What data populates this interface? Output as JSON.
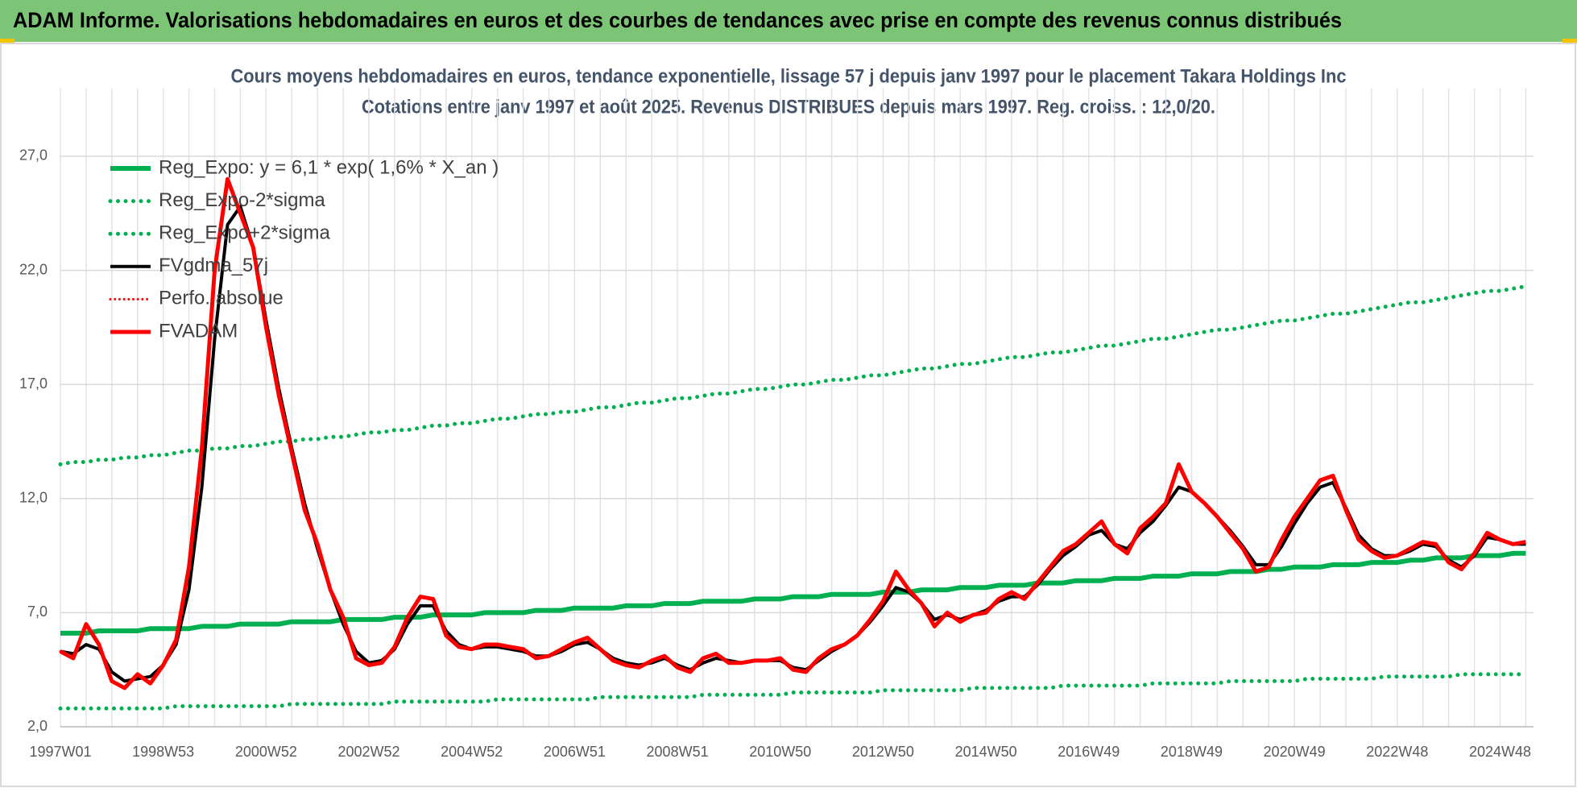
{
  "header": {
    "title": "ADAM Informe. Valorisations hebdomadaires en euros et des courbes de tendances avec prise en compte des revenus connus distribués"
  },
  "chart_data": {
    "type": "line",
    "title": "Cours moyens hebdomadaires en euros, tendance exponentielle, lissage 57 j depuis janv 1997 pour le placement Takara Holdings Inc",
    "subtitle": "Cotations entre janv 1997 et août 2025.  Revenus DISTRIBUES depuis mars 1997. Reg. croiss. : 12,0/20.",
    "categories": [
      "1997W01",
      null,
      null,
      null,
      null,
      null,
      null,
      null,
      "1998W53",
      null,
      null,
      null,
      null,
      null,
      null,
      null,
      "2000W52",
      null,
      null,
      null,
      null,
      null,
      null,
      null,
      "2002W52",
      null,
      null,
      null,
      null,
      null,
      null,
      null,
      "2004W52",
      null,
      null,
      null,
      null,
      null,
      null,
      null,
      "2006W51",
      null,
      null,
      null,
      null,
      null,
      null,
      null,
      "2008W51",
      null,
      null,
      null,
      null,
      null,
      null,
      null,
      "2010W50",
      null,
      null,
      null,
      null,
      null,
      null,
      null,
      "2012W50",
      null,
      null,
      null,
      null,
      null,
      null,
      null,
      "2014W50",
      null,
      null,
      null,
      null,
      null,
      null,
      null,
      "2016W49",
      null,
      null,
      null,
      null,
      null,
      null,
      null,
      "2018W49",
      null,
      null,
      null,
      null,
      null,
      null,
      null,
      "2020W49",
      null,
      null,
      null,
      null,
      null,
      null,
      null,
      "2022W48",
      null,
      null,
      null,
      null,
      null,
      null,
      null,
      "2024W48",
      null,
      null
    ],
    "ylim": [
      2,
      30
    ],
    "yticks": [
      {
        "value": 2,
        "label": "2,0"
      },
      {
        "value": 7,
        "label": "7,0"
      },
      {
        "value": 12,
        "label": "12,0"
      },
      {
        "value": 17,
        "label": "17,0"
      },
      {
        "value": 22,
        "label": "22,0"
      },
      {
        "value": 27,
        "label": "27,0"
      }
    ],
    "grid": true,
    "legend": "top-left",
    "series": [
      {
        "name": "Reg_Expo: y = 6,1 * exp( 1,6% *  X_an )",
        "color": "#00b050",
        "style": "solid",
        "width": 6,
        "values": [
          6.1,
          6.1,
          6.1,
          6.2,
          6.2,
          6.2,
          6.2,
          6.3,
          6.3,
          6.3,
          6.3,
          6.4,
          6.4,
          6.4,
          6.5,
          6.5,
          6.5,
          6.5,
          6.6,
          6.6,
          6.6,
          6.6,
          6.7,
          6.7,
          6.7,
          6.7,
          6.8,
          6.8,
          6.8,
          6.9,
          6.9,
          6.9,
          6.9,
          7.0,
          7.0,
          7.0,
          7.0,
          7.1,
          7.1,
          7.1,
          7.2,
          7.2,
          7.2,
          7.2,
          7.3,
          7.3,
          7.3,
          7.4,
          7.4,
          7.4,
          7.5,
          7.5,
          7.5,
          7.5,
          7.6,
          7.6,
          7.6,
          7.7,
          7.7,
          7.7,
          7.8,
          7.8,
          7.8,
          7.8,
          7.9,
          7.9,
          7.9,
          8.0,
          8.0,
          8.0,
          8.1,
          8.1,
          8.1,
          8.2,
          8.2,
          8.2,
          8.3,
          8.3,
          8.3,
          8.4,
          8.4,
          8.4,
          8.5,
          8.5,
          8.5,
          8.6,
          8.6,
          8.6,
          8.7,
          8.7,
          8.7,
          8.8,
          8.8,
          8.8,
          8.9,
          8.9,
          9.0,
          9.0,
          9.0,
          9.1,
          9.1,
          9.1,
          9.2,
          9.2,
          9.2,
          9.3,
          9.3,
          9.4,
          9.4,
          9.4,
          9.5,
          9.5,
          9.5,
          9.6,
          9.6
        ]
      },
      {
        "name": "Reg_Expo-2*sigma",
        "color": "#00b050",
        "style": "dotted",
        "width": 5,
        "values": [
          2.8,
          2.8,
          2.8,
          2.8,
          2.8,
          2.8,
          2.8,
          2.8,
          2.8,
          2.9,
          2.9,
          2.9,
          2.9,
          2.9,
          2.9,
          2.9,
          2.9,
          2.9,
          3.0,
          3.0,
          3.0,
          3.0,
          3.0,
          3.0,
          3.0,
          3.0,
          3.1,
          3.1,
          3.1,
          3.1,
          3.1,
          3.1,
          3.1,
          3.1,
          3.2,
          3.2,
          3.2,
          3.2,
          3.2,
          3.2,
          3.2,
          3.2,
          3.3,
          3.3,
          3.3,
          3.3,
          3.3,
          3.3,
          3.3,
          3.3,
          3.4,
          3.4,
          3.4,
          3.4,
          3.4,
          3.4,
          3.4,
          3.5,
          3.5,
          3.5,
          3.5,
          3.5,
          3.5,
          3.5,
          3.6,
          3.6,
          3.6,
          3.6,
          3.6,
          3.6,
          3.6,
          3.7,
          3.7,
          3.7,
          3.7,
          3.7,
          3.7,
          3.7,
          3.8,
          3.8,
          3.8,
          3.8,
          3.8,
          3.8,
          3.8,
          3.9,
          3.9,
          3.9,
          3.9,
          3.9,
          3.9,
          4.0,
          4.0,
          4.0,
          4.0,
          4.0,
          4.0,
          4.1,
          4.1,
          4.1,
          4.1,
          4.1,
          4.1,
          4.2,
          4.2,
          4.2,
          4.2,
          4.2,
          4.2,
          4.3,
          4.3,
          4.3,
          4.3,
          4.3,
          4.3
        ]
      },
      {
        "name": "Reg_Expo+2*sigma",
        "color": "#00b050",
        "style": "dotted",
        "width": 5,
        "values": [
          13.5,
          13.6,
          13.6,
          13.7,
          13.7,
          13.8,
          13.8,
          13.9,
          13.9,
          14.0,
          14.1,
          14.1,
          14.2,
          14.2,
          14.3,
          14.3,
          14.4,
          14.5,
          14.5,
          14.6,
          14.6,
          14.7,
          14.7,
          14.8,
          14.9,
          14.9,
          15.0,
          15.0,
          15.1,
          15.2,
          15.2,
          15.3,
          15.3,
          15.4,
          15.5,
          15.5,
          15.6,
          15.7,
          15.7,
          15.8,
          15.8,
          15.9,
          16.0,
          16.0,
          16.1,
          16.2,
          16.2,
          16.3,
          16.4,
          16.4,
          16.5,
          16.6,
          16.6,
          16.7,
          16.8,
          16.8,
          16.9,
          17.0,
          17.0,
          17.1,
          17.2,
          17.2,
          17.3,
          17.4,
          17.4,
          17.5,
          17.6,
          17.7,
          17.7,
          17.8,
          17.9,
          17.9,
          18.0,
          18.1,
          18.2,
          18.2,
          18.3,
          18.4,
          18.4,
          18.5,
          18.6,
          18.7,
          18.7,
          18.8,
          18.9,
          19.0,
          19.0,
          19.1,
          19.2,
          19.3,
          19.4,
          19.4,
          19.5,
          19.6,
          19.7,
          19.8,
          19.8,
          19.9,
          20.0,
          20.1,
          20.1,
          20.2,
          20.3,
          20.4,
          20.5,
          20.6,
          20.6,
          20.7,
          20.8,
          20.9,
          21.0,
          21.1,
          21.1,
          21.2,
          21.3
        ]
      },
      {
        "name": "FVgdma_57j",
        "color": "#000000",
        "style": "solid",
        "width": 4,
        "values": [
          5.3,
          5.2,
          5.6,
          5.4,
          4.4,
          4.0,
          4.1,
          4.2,
          4.7,
          5.6,
          8.0,
          12.5,
          19.0,
          24.0,
          24.8,
          23.0,
          19.8,
          16.8,
          14.2,
          11.8,
          9.8,
          8.0,
          6.5,
          5.3,
          4.8,
          4.9,
          5.4,
          6.5,
          7.3,
          7.3,
          6.2,
          5.6,
          5.4,
          5.5,
          5.5,
          5.4,
          5.3,
          5.1,
          5.1,
          5.3,
          5.6,
          5.7,
          5.4,
          5.0,
          4.8,
          4.7,
          4.8,
          5.0,
          4.7,
          4.5,
          4.8,
          5.0,
          4.9,
          4.8,
          4.9,
          4.9,
          4.9,
          4.6,
          4.5,
          4.9,
          5.3,
          5.6,
          6.0,
          6.6,
          7.3,
          8.1,
          7.9,
          7.4,
          6.7,
          6.9,
          6.7,
          6.9,
          7.1,
          7.5,
          7.7,
          7.7,
          8.2,
          8.9,
          9.5,
          9.9,
          10.4,
          10.6,
          10.0,
          9.8,
          10.5,
          11.0,
          11.7,
          12.5,
          12.3,
          11.8,
          11.2,
          10.6,
          9.9,
          9.1,
          9.1,
          9.9,
          10.9,
          11.8,
          12.5,
          12.7,
          11.6,
          10.4,
          9.8,
          9.5,
          9.5,
          9.7,
          10.0,
          9.9,
          9.3,
          9.0,
          9.5,
          10.3,
          10.2,
          10.0,
          10.0
        ]
      },
      {
        "name": "Perfo. absolue",
        "color": "#ff0000",
        "style": "dotted",
        "width": 3,
        "values": [
          5.3,
          5.0,
          6.5,
          5.6,
          4.0,
          3.7,
          4.3,
          3.9,
          4.7,
          5.8,
          9.0,
          14.2,
          22.0,
          26.0,
          24.5,
          23.0,
          19.5,
          16.5,
          14.0,
          11.5,
          10.0,
          8.0,
          6.8,
          5.0,
          4.7,
          4.8,
          5.5,
          6.8,
          7.7,
          7.6,
          6.0,
          5.5,
          5.4,
          5.6,
          5.6,
          5.5,
          5.4,
          5.0,
          5.1,
          5.4,
          5.7,
          5.9,
          5.4,
          4.9,
          4.7,
          4.6,
          4.9,
          5.1,
          4.6,
          4.4,
          5.0,
          5.2,
          4.8,
          4.8,
          4.9,
          4.9,
          5.0,
          4.5,
          4.4,
          5.0,
          5.4,
          5.6,
          6.0,
          6.7,
          7.5,
          8.8,
          8.0,
          7.4,
          6.4,
          7.0,
          6.6,
          6.9,
          7.0,
          7.6,
          7.9,
          7.6,
          8.3,
          9.0,
          9.7,
          10.0,
          10.5,
          11.0,
          10.0,
          9.6,
          10.7,
          11.2,
          11.8,
          13.5,
          12.3,
          11.8,
          11.2,
          10.5,
          9.8,
          8.8,
          9.0,
          10.2,
          11.2,
          12.0,
          12.8,
          13.0,
          11.5,
          10.2,
          9.7,
          9.4,
          9.5,
          9.8,
          10.1,
          10.0,
          9.2,
          8.9,
          9.6,
          10.5,
          10.2,
          10.0,
          10.1
        ]
      },
      {
        "name": "FVADAM",
        "color": "#ff0000",
        "style": "solid",
        "width": 5,
        "values": [
          5.3,
          5.0,
          6.5,
          5.6,
          4.0,
          3.7,
          4.3,
          3.9,
          4.7,
          5.8,
          9.0,
          14.2,
          22.0,
          26.0,
          24.5,
          23.0,
          19.5,
          16.5,
          14.0,
          11.5,
          10.0,
          8.0,
          6.8,
          5.0,
          4.7,
          4.8,
          5.5,
          6.8,
          7.7,
          7.6,
          6.0,
          5.5,
          5.4,
          5.6,
          5.6,
          5.5,
          5.4,
          5.0,
          5.1,
          5.4,
          5.7,
          5.9,
          5.4,
          4.9,
          4.7,
          4.6,
          4.9,
          5.1,
          4.6,
          4.4,
          5.0,
          5.2,
          4.8,
          4.8,
          4.9,
          4.9,
          5.0,
          4.5,
          4.4,
          5.0,
          5.4,
          5.6,
          6.0,
          6.7,
          7.5,
          8.8,
          8.0,
          7.4,
          6.4,
          7.0,
          6.6,
          6.9,
          7.0,
          7.6,
          7.9,
          7.6,
          8.3,
          9.0,
          9.7,
          10.0,
          10.5,
          11.0,
          10.0,
          9.6,
          10.7,
          11.2,
          11.8,
          13.5,
          12.3,
          11.8,
          11.2,
          10.5,
          9.8,
          8.8,
          9.0,
          10.2,
          11.2,
          12.0,
          12.8,
          13.0,
          11.5,
          10.2,
          9.7,
          9.4,
          9.5,
          9.8,
          10.1,
          10.0,
          9.2,
          8.9,
          9.6,
          10.5,
          10.2,
          10.0,
          10.1
        ]
      }
    ]
  }
}
